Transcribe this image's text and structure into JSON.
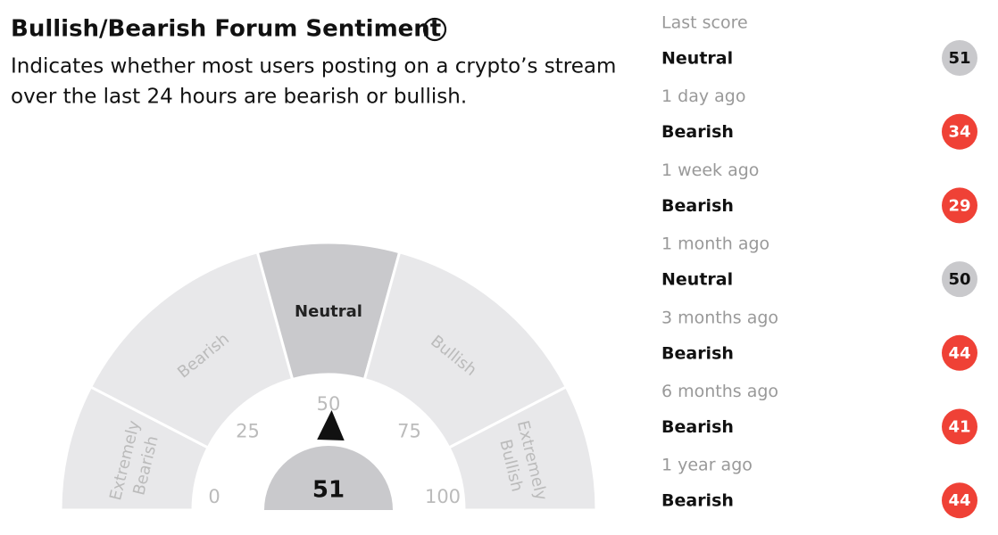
{
  "header": {
    "title": "Bullish/Bearish Forum Sentiment",
    "subtitle": [
      "Indicates whether most users posting on a crypto’s stream",
      "over the last 24 hours are bearish or bullish."
    ]
  },
  "gauge": {
    "segments": [
      {
        "label": [
          "Extremely",
          "Bearish"
        ]
      },
      {
        "label": [
          "Bearish"
        ]
      },
      {
        "label": [
          "Neutral"
        ],
        "active": true
      },
      {
        "label": [
          "Bullish"
        ]
      },
      {
        "label": [
          "Extremely",
          "Bullish"
        ]
      }
    ],
    "ticks": [
      0,
      25,
      50,
      75,
      100
    ],
    "value": 51
  },
  "history": [
    {
      "period": "Last score",
      "sentiment": "Neutral",
      "score": 51,
      "color": "#c9c9cc"
    },
    {
      "period": "1 day ago",
      "sentiment": "Bearish",
      "score": 34,
      "color": "#ef4136"
    },
    {
      "period": "1 week ago",
      "sentiment": "Bearish",
      "score": 29,
      "color": "#ef4136"
    },
    {
      "period": "1 month ago",
      "sentiment": "Neutral",
      "score": 50,
      "color": "#c9c9cc"
    },
    {
      "period": "3 months ago",
      "sentiment": "Bearish",
      "score": 44,
      "color": "#ef4136"
    },
    {
      "period": "6 months ago",
      "sentiment": "Bearish",
      "score": 41,
      "color": "#ef4136"
    },
    {
      "period": "1 year ago",
      "sentiment": "Bearish",
      "score": 44,
      "color": "#ef4136"
    }
  ]
}
